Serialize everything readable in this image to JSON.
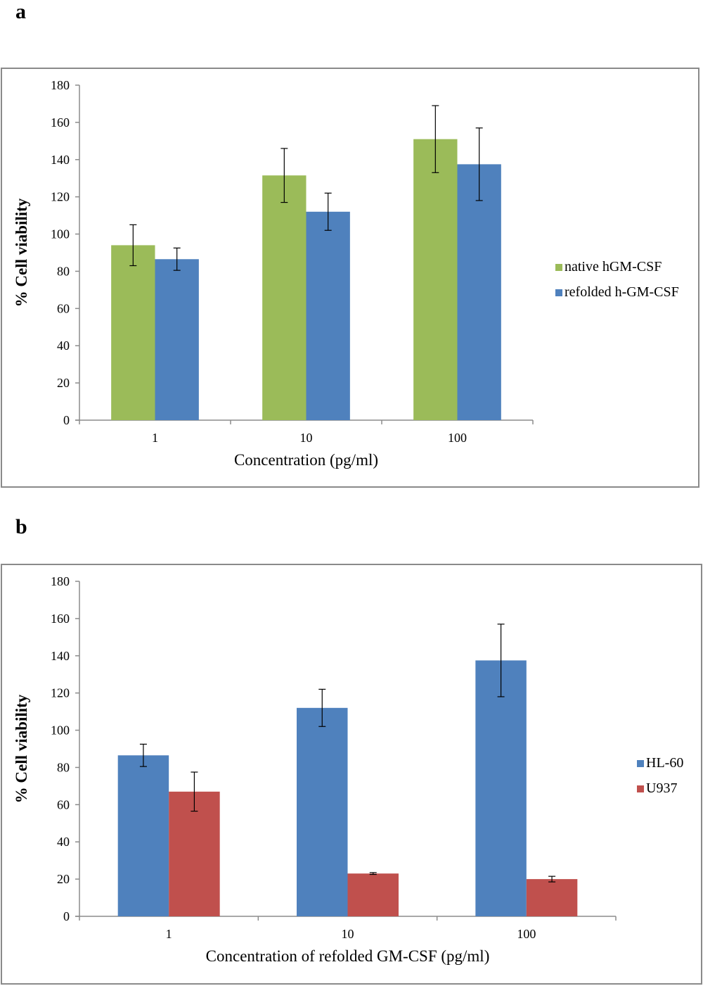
{
  "panels": [
    {
      "label": "a"
    },
    {
      "label": "b"
    }
  ],
  "chart_data": [
    {
      "type": "bar",
      "categories": [
        "1",
        "10",
        "100"
      ],
      "xlabel": "Concentration (pg/ml)",
      "ylabel": "% Cell viability",
      "ylim": [
        0,
        180
      ],
      "yticks": [
        0,
        20,
        40,
        60,
        80,
        100,
        120,
        140,
        160,
        180
      ],
      "grid": false,
      "legend_position": "right",
      "series": [
        {
          "name": "native hGM-CSF",
          "color": "#9BBB59",
          "values": [
            94,
            131.5,
            151
          ],
          "errors": [
            11,
            14.5,
            18
          ]
        },
        {
          "name": "refolded h-GM-CSF",
          "color": "#4F81BD",
          "values": [
            86.5,
            112,
            137.5
          ],
          "errors": [
            6,
            10,
            19.5
          ]
        }
      ]
    },
    {
      "type": "bar",
      "categories": [
        "1",
        "10",
        "100"
      ],
      "xlabel": "Concentration of refolded GM-CSF (pg/ml)",
      "ylabel": "% Cell viability",
      "ylim": [
        0,
        180
      ],
      "yticks": [
        0,
        20,
        40,
        60,
        80,
        100,
        120,
        140,
        160,
        180
      ],
      "grid": false,
      "legend_position": "right",
      "series": [
        {
          "name": "HL-60",
          "color": "#4F81BD",
          "values": [
            86.5,
            112,
            137.5
          ],
          "errors": [
            6,
            10,
            19.5
          ]
        },
        {
          "name": "U937",
          "color": "#C0504D",
          "values": [
            67,
            23,
            20
          ],
          "errors": [
            10.5,
            0.5,
            1.5
          ]
        }
      ]
    }
  ]
}
